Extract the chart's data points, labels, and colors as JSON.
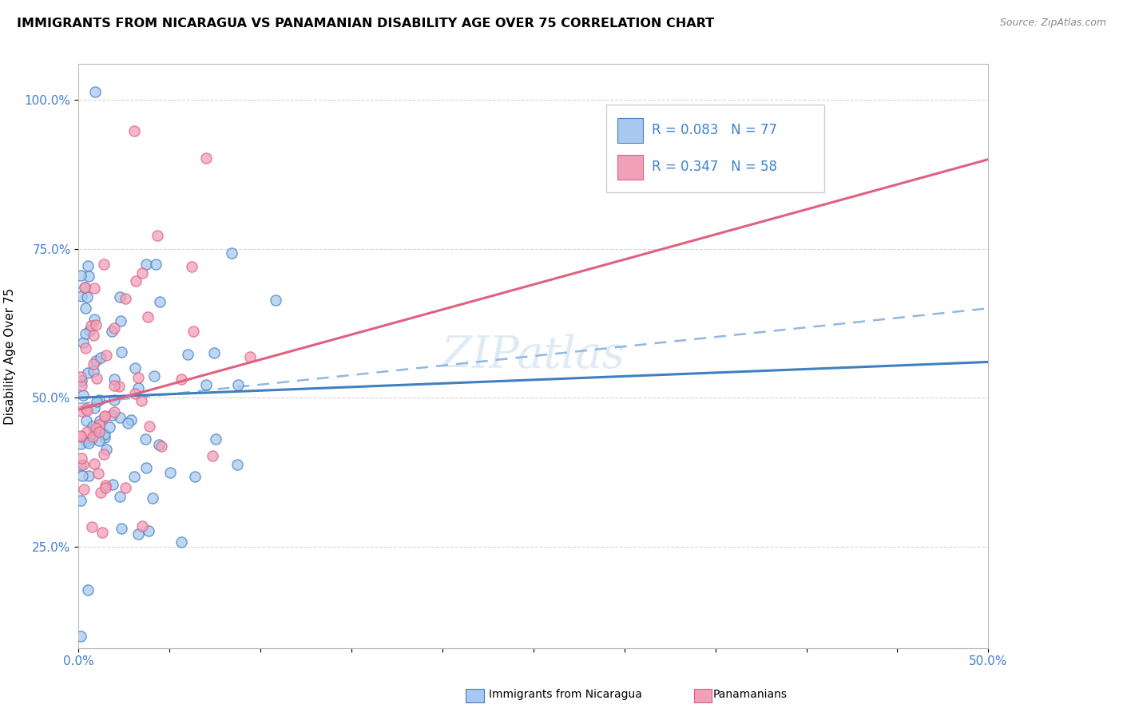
{
  "title": "IMMIGRANTS FROM NICARAGUA VS PANAMANIAN DISABILITY AGE OVER 75 CORRELATION CHART",
  "source": "Source: ZipAtlas.com",
  "ylabel": "Disability Age Over 75",
  "xlim": [
    0.0,
    0.5
  ],
  "ylim": [
    0.08,
    1.06
  ],
  "xticks": [
    0.0,
    0.05,
    0.1,
    0.15,
    0.2,
    0.25,
    0.3,
    0.35,
    0.4,
    0.45,
    0.5
  ],
  "xticklabels": [
    "0.0%",
    "",
    "",
    "",
    "",
    "",
    "",
    "",
    "",
    "",
    "50.0%"
  ],
  "yticks": [
    0.25,
    0.5,
    0.75,
    1.0
  ],
  "yticklabels": [
    "25.0%",
    "50.0%",
    "75.0%",
    "100.0%"
  ],
  "legend_r1": "R = 0.083",
  "legend_n1": "N = 77",
  "legend_r2": "R = 0.347",
  "legend_n2": "N = 58",
  "color_nicaragua": "#a8c8f0",
  "color_panama": "#f0a0b8",
  "color_line_nicaragua": "#4080c0",
  "color_line_panama": "#e06080",
  "color_dashed": "#90b8e0",
  "color_text_blue": "#4080d0",
  "watermark_color": "#c8dff0",
  "watermark_alpha": 0.6
}
